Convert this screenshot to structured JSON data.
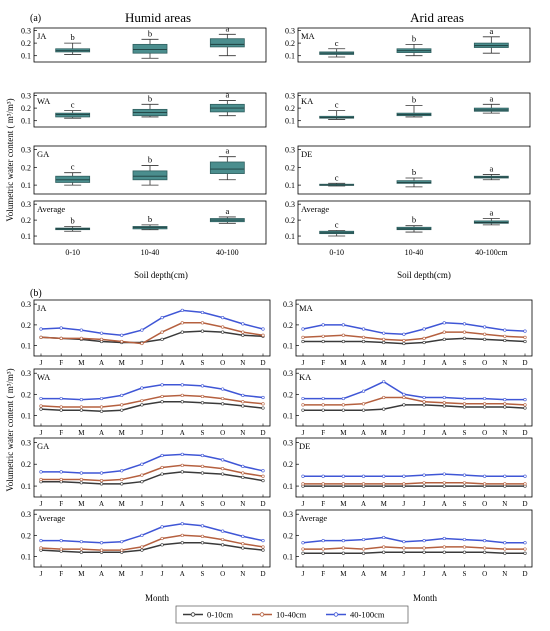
{
  "figure": {
    "panel_a_label": "(a)",
    "panel_b_label": "(b)",
    "title_humid": "Humid areas",
    "title_arid": "Arid areas",
    "ylabel": "Volumetric water content ( m³/m³)",
    "xlabel_depth_left": "Soil depth(cm)",
    "xlabel_depth_right": "Soil depth(cm)",
    "xlabel_month_left": "Month",
    "xlabel_month_right": "Month",
    "legend": [
      {
        "name": "0-10cm",
        "color": "#3a3a3a"
      },
      {
        "name": "10-40cm",
        "color": "#b5603f"
      },
      {
        "name": "40-100cm",
        "color": "#3f56d6"
      }
    ]
  },
  "chart_data": [
    {
      "type": "box",
      "panel": "a",
      "side": "humid",
      "depth_categories_left": [
        "0-10",
        "10-40",
        "40-100"
      ],
      "depth_categories_right": [
        "0-10",
        "10-40",
        "40-100cm"
      ],
      "ylim": [
        0.05,
        0.32
      ],
      "yticks": [
        0.1,
        0.2,
        0.3
      ],
      "box_color": "#4b8e8e",
      "sites": [
        {
          "name": "JA",
          "letters": [
            "b",
            "b",
            "a"
          ],
          "boxes": [
            {
              "min": 0.11,
              "q1": 0.13,
              "med": 0.14,
              "q3": 0.155,
              "max": 0.2
            },
            {
              "min": 0.08,
              "q1": 0.12,
              "med": 0.15,
              "q3": 0.19,
              "max": 0.23
            },
            {
              "min": 0.1,
              "q1": 0.17,
              "med": 0.19,
              "q3": 0.235,
              "max": 0.27
            }
          ]
        },
        {
          "name": "WA",
          "letters": [
            "c",
            "b",
            "a"
          ],
          "boxes": [
            {
              "min": 0.12,
              "q1": 0.13,
              "med": 0.15,
              "q3": 0.16,
              "max": 0.18
            },
            {
              "min": 0.13,
              "q1": 0.14,
              "med": 0.165,
              "q3": 0.19,
              "max": 0.23
            },
            {
              "min": 0.14,
              "q1": 0.17,
              "med": 0.2,
              "q3": 0.23,
              "max": 0.26
            }
          ]
        },
        {
          "name": "GA",
          "letters": [
            "c",
            "b",
            "a"
          ],
          "boxes": [
            {
              "min": 0.1,
              "q1": 0.115,
              "med": 0.13,
              "q3": 0.15,
              "max": 0.17
            },
            {
              "min": 0.1,
              "q1": 0.13,
              "med": 0.15,
              "q3": 0.18,
              "max": 0.21
            },
            {
              "min": 0.13,
              "q1": 0.165,
              "med": 0.19,
              "q3": 0.23,
              "max": 0.26
            }
          ]
        },
        {
          "name": "Average",
          "letters": [
            "b",
            "b",
            "a"
          ],
          "boxes": [
            {
              "min": 0.13,
              "q1": 0.14,
              "med": 0.145,
              "q3": 0.15,
              "max": 0.16
            },
            {
              "min": 0.14,
              "q1": 0.145,
              "med": 0.155,
              "q3": 0.16,
              "max": 0.17
            },
            {
              "min": 0.18,
              "q1": 0.19,
              "med": 0.2,
              "q3": 0.21,
              "max": 0.22
            }
          ]
        }
      ]
    },
    {
      "type": "box",
      "panel": "a",
      "side": "arid",
      "ylim": [
        0.05,
        0.32
      ],
      "yticks": [
        0.1,
        0.2,
        0.3
      ],
      "sites": [
        {
          "name": "MA",
          "letters": [
            "c",
            "b",
            "a"
          ],
          "boxes": [
            {
              "min": 0.09,
              "q1": 0.11,
              "med": 0.12,
              "q3": 0.13,
              "max": 0.155
            },
            {
              "min": 0.1,
              "q1": 0.125,
              "med": 0.14,
              "q3": 0.155,
              "max": 0.19
            },
            {
              "min": 0.12,
              "q1": 0.165,
              "med": 0.18,
              "q3": 0.2,
              "max": 0.25
            }
          ]
        },
        {
          "name": "KA",
          "letters": [
            "c",
            "b",
            "a"
          ],
          "boxes": [
            {
              "min": 0.11,
              "q1": 0.12,
              "med": 0.125,
              "q3": 0.135,
              "max": 0.18
            },
            {
              "min": 0.13,
              "q1": 0.14,
              "med": 0.15,
              "q3": 0.16,
              "max": 0.22
            },
            {
              "min": 0.16,
              "q1": 0.175,
              "med": 0.185,
              "q3": 0.2,
              "max": 0.23
            }
          ]
        },
        {
          "name": "DE",
          "letters": [
            "c",
            "b",
            "a"
          ],
          "boxes": [
            {
              "min": 0.095,
              "q1": 0.1,
              "med": 0.1,
              "q3": 0.105,
              "max": 0.11
            },
            {
              "min": 0.09,
              "q1": 0.11,
              "med": 0.115,
              "q3": 0.125,
              "max": 0.14
            },
            {
              "min": 0.13,
              "q1": 0.14,
              "med": 0.145,
              "q3": 0.15,
              "max": 0.16
            }
          ]
        },
        {
          "name": "Average",
          "letters": [
            "c",
            "b",
            "a"
          ],
          "boxes": [
            {
              "min": 0.1,
              "q1": 0.115,
              "med": 0.12,
              "q3": 0.13,
              "max": 0.135
            },
            {
              "min": 0.125,
              "q1": 0.14,
              "med": 0.145,
              "q3": 0.155,
              "max": 0.165
            },
            {
              "min": 0.17,
              "q1": 0.18,
              "med": 0.185,
              "q3": 0.195,
              "max": 0.21
            }
          ]
        }
      ]
    },
    {
      "type": "line",
      "panel": "b",
      "x": [
        "J",
        "F",
        "M",
        "A",
        "M",
        "J",
        "J",
        "A",
        "S",
        "O",
        "N",
        "D"
      ],
      "ylim": [
        0.05,
        0.32
      ],
      "yticks": [
        0.1,
        0.2,
        0.3
      ],
      "series_names": [
        "0-10cm",
        "10-40cm",
        "40-100cm"
      ],
      "sites": [
        {
          "name": "JA",
          "side": "humid",
          "series": [
            [
              0.14,
              0.135,
              0.13,
              0.12,
              0.115,
              0.115,
              0.13,
              0.165,
              0.17,
              0.165,
              0.15,
              0.145
            ],
            [
              0.14,
              0.135,
              0.135,
              0.13,
              0.12,
              0.11,
              0.165,
              0.21,
              0.21,
              0.19,
              0.165,
              0.15
            ],
            [
              0.18,
              0.185,
              0.175,
              0.16,
              0.15,
              0.175,
              0.235,
              0.27,
              0.26,
              0.235,
              0.205,
              0.18
            ]
          ]
        },
        {
          "name": "WA",
          "side": "humid",
          "series": [
            [
              0.13,
              0.125,
              0.125,
              0.12,
              0.125,
              0.15,
              0.165,
              0.165,
              0.16,
              0.155,
              0.145,
              0.135
            ],
            [
              0.145,
              0.14,
              0.14,
              0.14,
              0.15,
              0.17,
              0.19,
              0.195,
              0.19,
              0.18,
              0.165,
              0.155
            ],
            [
              0.18,
              0.18,
              0.175,
              0.18,
              0.195,
              0.23,
              0.245,
              0.245,
              0.24,
              0.225,
              0.195,
              0.185
            ]
          ]
        },
        {
          "name": "GA",
          "side": "humid",
          "series": [
            [
              0.12,
              0.12,
              0.115,
              0.11,
              0.11,
              0.12,
              0.155,
              0.165,
              0.16,
              0.155,
              0.14,
              0.125
            ],
            [
              0.13,
              0.13,
              0.13,
              0.125,
              0.13,
              0.15,
              0.185,
              0.195,
              0.19,
              0.18,
              0.16,
              0.145
            ],
            [
              0.165,
              0.165,
              0.16,
              0.16,
              0.17,
              0.2,
              0.24,
              0.245,
              0.24,
              0.22,
              0.19,
              0.17
            ]
          ]
        },
        {
          "name": "Average",
          "side": "humid",
          "series": [
            [
              0.13,
              0.125,
              0.12,
              0.12,
              0.12,
              0.13,
              0.155,
              0.165,
              0.165,
              0.155,
              0.14,
              0.13
            ],
            [
              0.14,
              0.135,
              0.135,
              0.13,
              0.13,
              0.145,
              0.185,
              0.2,
              0.195,
              0.18,
              0.16,
              0.145
            ],
            [
              0.175,
              0.175,
              0.17,
              0.165,
              0.17,
              0.2,
              0.24,
              0.255,
              0.245,
              0.22,
              0.195,
              0.175
            ]
          ]
        },
        {
          "name": "MA",
          "side": "arid",
          "series": [
            [
              0.12,
              0.12,
              0.12,
              0.12,
              0.115,
              0.11,
              0.115,
              0.13,
              0.135,
              0.13,
              0.125,
              0.12
            ],
            [
              0.14,
              0.145,
              0.15,
              0.14,
              0.13,
              0.125,
              0.135,
              0.165,
              0.165,
              0.155,
              0.145,
              0.14
            ],
            [
              0.18,
              0.2,
              0.2,
              0.18,
              0.16,
              0.155,
              0.18,
              0.21,
              0.205,
              0.19,
              0.175,
              0.17
            ]
          ]
        },
        {
          "name": "KA",
          "side": "arid",
          "series": [
            [
              0.125,
              0.125,
              0.125,
              0.125,
              0.13,
              0.15,
              0.15,
              0.145,
              0.14,
              0.14,
              0.14,
              0.135
            ],
            [
              0.15,
              0.15,
              0.15,
              0.155,
              0.185,
              0.185,
              0.165,
              0.16,
              0.155,
              0.155,
              0.155,
              0.15
            ],
            [
              0.18,
              0.18,
              0.18,
              0.215,
              0.26,
              0.2,
              0.185,
              0.185,
              0.18,
              0.18,
              0.175,
              0.175
            ]
          ]
        },
        {
          "name": "DE",
          "side": "arid",
          "series": [
            [
              0.1,
              0.1,
              0.1,
              0.1,
              0.1,
              0.1,
              0.1,
              0.1,
              0.1,
              0.1,
              0.1,
              0.1
            ],
            [
              0.11,
              0.11,
              0.11,
              0.11,
              0.11,
              0.11,
              0.115,
              0.115,
              0.115,
              0.11,
              0.11,
              0.11
            ],
            [
              0.145,
              0.145,
              0.145,
              0.145,
              0.145,
              0.145,
              0.15,
              0.155,
              0.15,
              0.145,
              0.145,
              0.145
            ]
          ]
        },
        {
          "name": "Average",
          "side": "arid",
          "series": [
            [
              0.115,
              0.115,
              0.115,
              0.115,
              0.12,
              0.12,
              0.12,
              0.12,
              0.12,
              0.12,
              0.115,
              0.115
            ],
            [
              0.135,
              0.135,
              0.14,
              0.135,
              0.145,
              0.14,
              0.14,
              0.145,
              0.145,
              0.14,
              0.135,
              0.135
            ],
            [
              0.165,
              0.175,
              0.175,
              0.18,
              0.19,
              0.17,
              0.175,
              0.185,
              0.18,
              0.175,
              0.165,
              0.165
            ]
          ]
        }
      ]
    }
  ]
}
